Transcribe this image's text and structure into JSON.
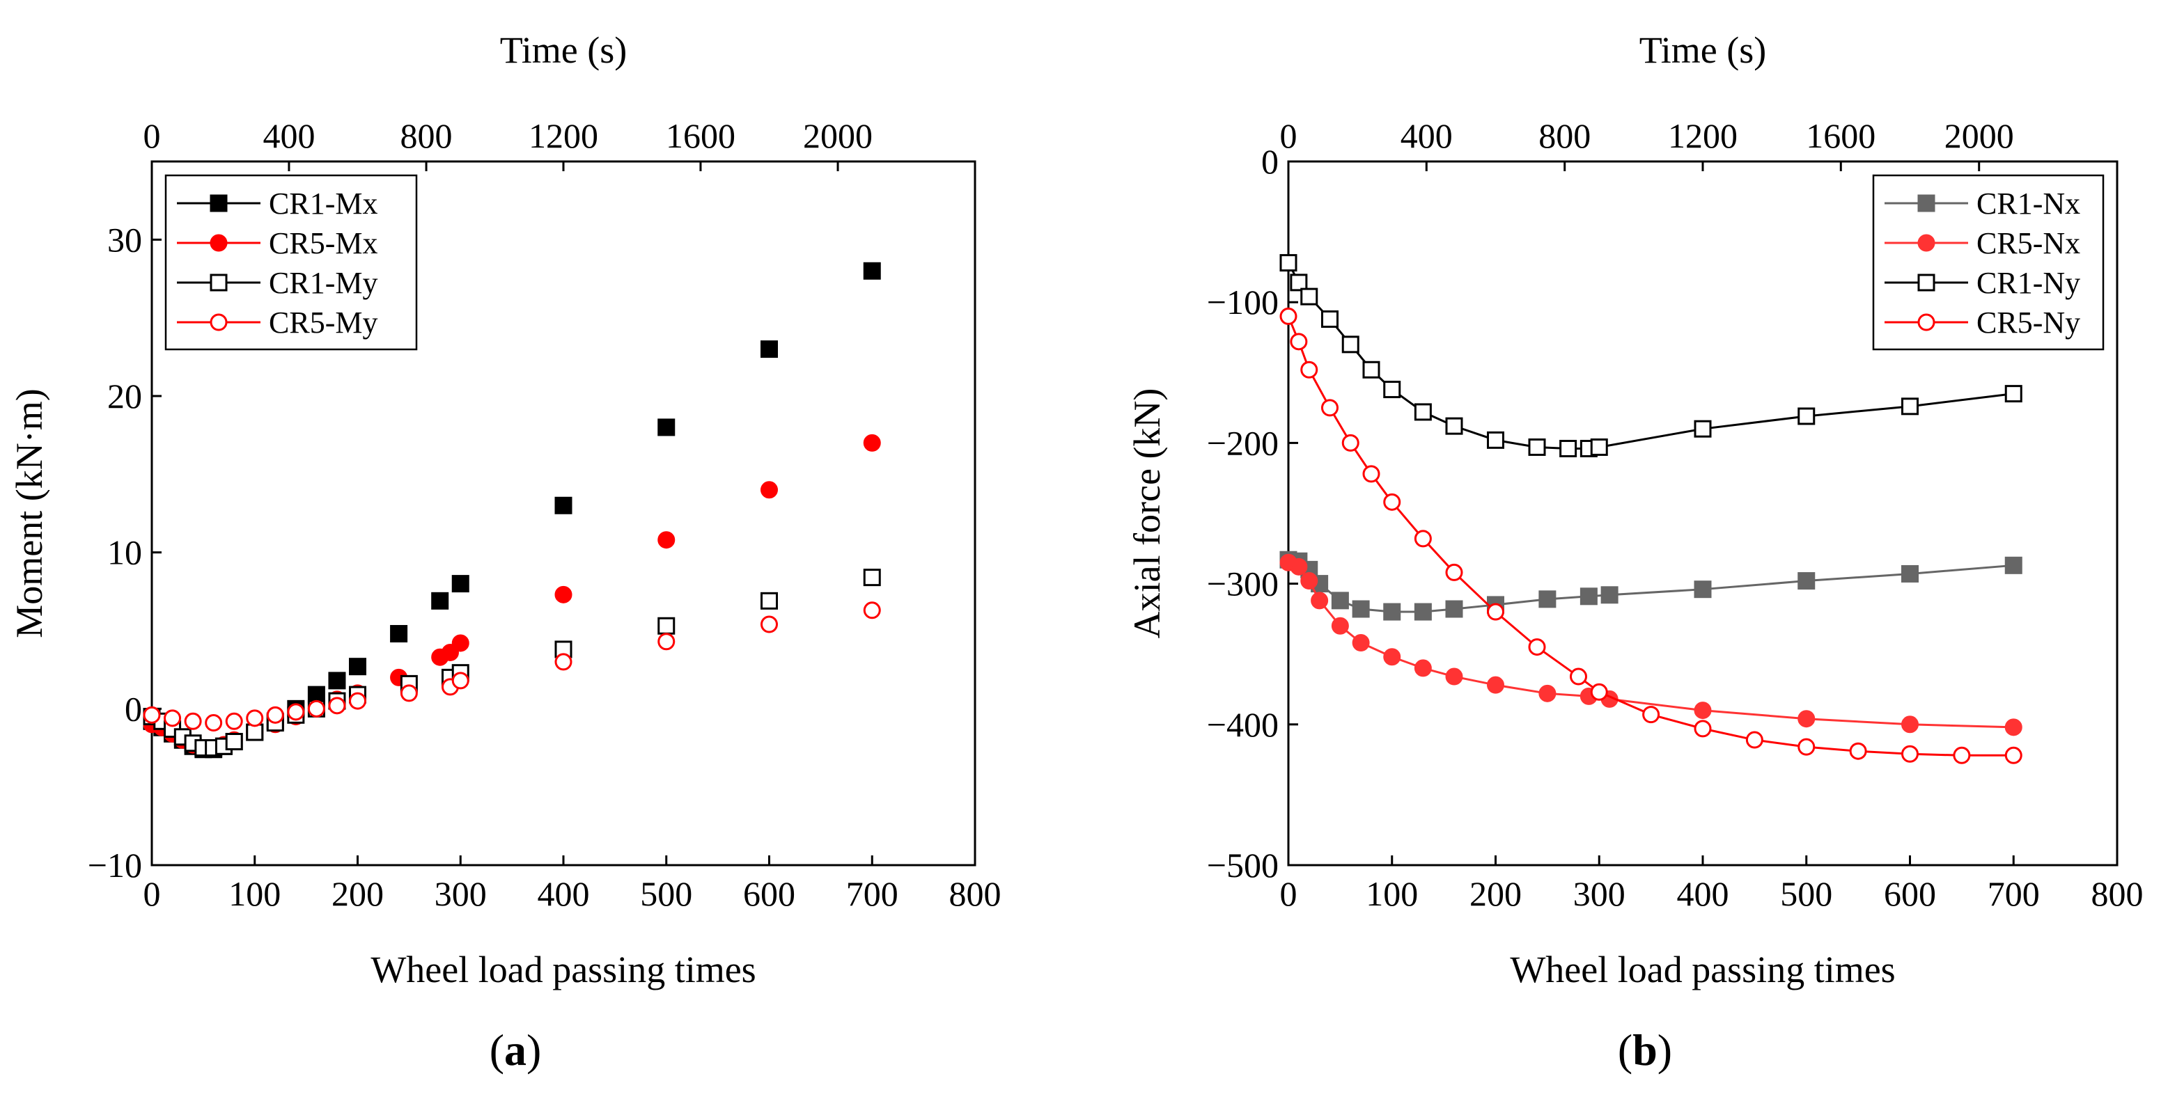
{
  "chart_data": [
    {
      "id": "a",
      "type": "scatter",
      "panel_label": "(a)",
      "panel_letter": "a",
      "xlabel": "Wheel load passing times",
      "ylabel": "Moment (kN·m)",
      "top_xlabel": "Time (s)",
      "xlim": [
        0,
        800
      ],
      "ylim": [
        -10,
        35
      ],
      "xticks": [
        0,
        100,
        200,
        300,
        400,
        500,
        600,
        700,
        800
      ],
      "yticks": [
        -10,
        0,
        10,
        20,
        30
      ],
      "top_xticks_labels": [
        "0",
        "400",
        "800",
        "1200",
        "1600",
        "2000"
      ],
      "top_xticks_pos": [
        0,
        133.3,
        266.7,
        400,
        533.3,
        666.7
      ],
      "legend_position": "top-left",
      "grid": false,
      "series": [
        {
          "name": "CR1-Mx",
          "marker": "square",
          "filled": true,
          "color": "#000000",
          "x": [
            0,
            10,
            20,
            30,
            40,
            50,
            60,
            70,
            80,
            100,
            120,
            140,
            160,
            180,
            200,
            240,
            280,
            300,
            400,
            500,
            600,
            700
          ],
          "y": [
            -0.8,
            -1.2,
            -1.6,
            -2.0,
            -2.4,
            -2.6,
            -2.6,
            -2.4,
            -2.1,
            -1.5,
            -0.8,
            0.0,
            0.9,
            1.8,
            2.7,
            4.8,
            6.9,
            8.0,
            13.0,
            18.0,
            23.0,
            28.0
          ]
        },
        {
          "name": "CR5-Mx",
          "marker": "circle",
          "filled": true,
          "color": "#ff0000",
          "x": [
            0,
            10,
            20,
            30,
            40,
            50,
            60,
            70,
            80,
            100,
            120,
            140,
            160,
            180,
            200,
            240,
            280,
            290,
            300,
            400,
            500,
            600,
            700
          ],
          "y": [
            -1.0,
            -1.2,
            -1.6,
            -2.0,
            -2.3,
            -2.5,
            -2.5,
            -2.3,
            -2.0,
            -1.5,
            -1.0,
            -0.5,
            0.0,
            0.6,
            1.0,
            2.0,
            3.3,
            3.6,
            4.2,
            7.3,
            10.8,
            14.0,
            17.0
          ]
        },
        {
          "name": "CR1-My",
          "marker": "square",
          "filled": false,
          "color": "#000000",
          "x": [
            0,
            10,
            20,
            30,
            40,
            50,
            60,
            70,
            80,
            100,
            120,
            140,
            160,
            180,
            200,
            250,
            290,
            300,
            400,
            500,
            600,
            700
          ],
          "y": [
            -0.5,
            -0.8,
            -1.3,
            -1.8,
            -2.2,
            -2.5,
            -2.5,
            -2.4,
            -2.1,
            -1.5,
            -0.9,
            -0.4,
            0.0,
            0.5,
            0.9,
            1.6,
            2.0,
            2.3,
            3.8,
            5.3,
            6.9,
            8.4
          ]
        },
        {
          "name": "CR5-My",
          "marker": "circle",
          "filled": false,
          "color": "#ff0000",
          "x": [
            0,
            20,
            40,
            60,
            80,
            100,
            120,
            140,
            160,
            180,
            200,
            250,
            290,
            300,
            400,
            500,
            600,
            700
          ],
          "y": [
            -0.4,
            -0.6,
            -0.8,
            -0.9,
            -0.8,
            -0.6,
            -0.4,
            -0.2,
            0.0,
            0.2,
            0.5,
            1.0,
            1.4,
            1.8,
            3.0,
            4.3,
            5.4,
            6.3
          ]
        }
      ]
    },
    {
      "id": "b",
      "type": "scatter",
      "panel_label": "(b)",
      "panel_letter": "b",
      "xlabel": "Wheel load passing times",
      "ylabel": "Axial force (kN)",
      "top_xlabel": "Time (s)",
      "xlim": [
        0,
        800
      ],
      "ylim": [
        -500,
        0
      ],
      "xticks": [
        0,
        100,
        200,
        300,
        400,
        500,
        600,
        700,
        800
      ],
      "yticks": [
        -500,
        -400,
        -300,
        -200,
        -100,
        0
      ],
      "top_xticks_labels": [
        "0",
        "400",
        "800",
        "1200",
        "1600",
        "2000"
      ],
      "top_xticks_pos": [
        0,
        133.3,
        266.7,
        400,
        533.3,
        666.7
      ],
      "legend_position": "top-right",
      "grid": false,
      "series": [
        {
          "name": "CR1-Nx",
          "marker": "square",
          "filled": true,
          "color": "#666666",
          "line": true,
          "x": [
            0,
            10,
            20,
            30,
            50,
            70,
            100,
            130,
            160,
            200,
            250,
            290,
            310,
            400,
            500,
            600,
            700
          ],
          "y": [
            -283,
            -284,
            -290,
            -300,
            -312,
            -318,
            -320,
            -320,
            -318,
            -315,
            -311,
            -309,
            -308,
            -304,
            -298,
            -293,
            -287
          ]
        },
        {
          "name": "CR5-Nx",
          "marker": "circle",
          "filled": true,
          "color": "#ff3333",
          "line": true,
          "x": [
            0,
            10,
            20,
            30,
            50,
            70,
            100,
            130,
            160,
            200,
            250,
            290,
            310,
            400,
            500,
            600,
            700
          ],
          "y": [
            -285,
            -288,
            -298,
            -312,
            -330,
            -342,
            -352,
            -360,
            -366,
            -372,
            -378,
            -380,
            -382,
            -390,
            -396,
            -400,
            -402
          ]
        },
        {
          "name": "CR1-Ny",
          "marker": "square",
          "filled": false,
          "color": "#000000",
          "line": true,
          "x": [
            0,
            10,
            20,
            40,
            60,
            80,
            100,
            130,
            160,
            200,
            240,
            270,
            290,
            300,
            400,
            500,
            600,
            700
          ],
          "y": [
            -72,
            -86,
            -96,
            -112,
            -130,
            -148,
            -162,
            -178,
            -188,
            -198,
            -203,
            -204,
            -204,
            -203,
            -190,
            -181,
            -174,
            -165
          ]
        },
        {
          "name": "CR5-Ny",
          "marker": "circle",
          "filled": false,
          "color": "#ff0000",
          "line": true,
          "x": [
            0,
            10,
            20,
            40,
            60,
            80,
            100,
            130,
            160,
            200,
            240,
            280,
            300,
            350,
            400,
            450,
            500,
            550,
            600,
            650,
            700
          ],
          "y": [
            -110,
            -128,
            -148,
            -175,
            -200,
            -222,
            -242,
            -268,
            -292,
            -320,
            -345,
            -366,
            -377,
            -393,
            -403,
            -411,
            -416,
            -419,
            -421,
            -422,
            -422
          ]
        }
      ]
    }
  ]
}
